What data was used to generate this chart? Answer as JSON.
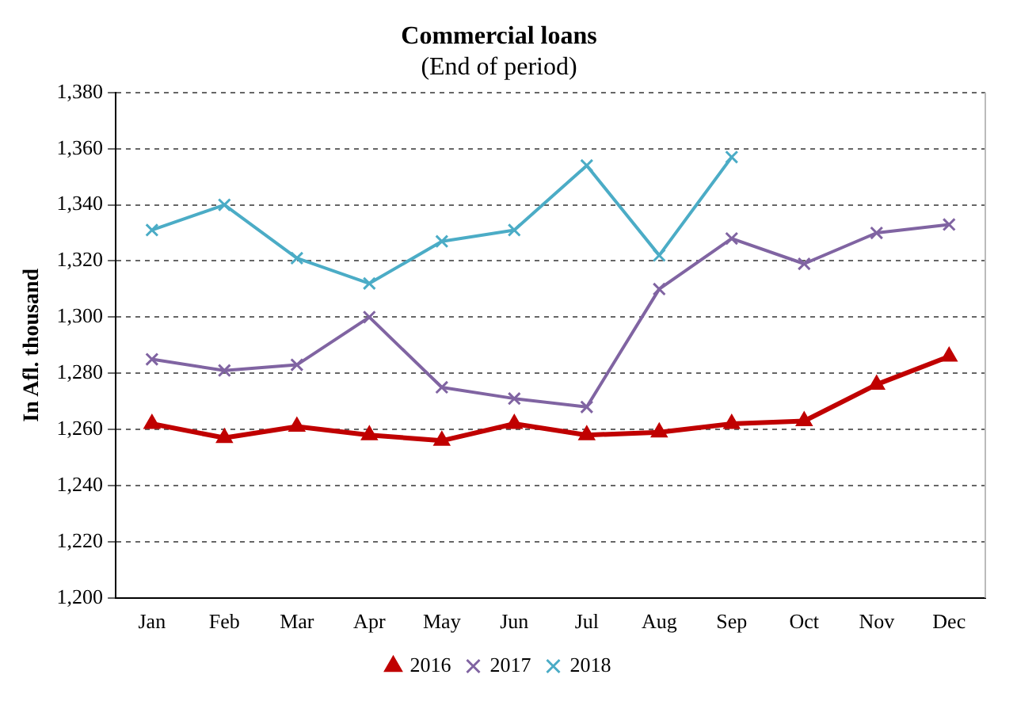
{
  "chart_data": {
    "type": "line",
    "title": "Commercial loans",
    "subtitle": "(End of period)",
    "ylabel": "In Afl. thousand",
    "categories": [
      "Jan",
      "Feb",
      "Mar",
      "Apr",
      "May",
      "Jun",
      "Jul",
      "Aug",
      "Sep",
      "Oct",
      "Nov",
      "Dec"
    ],
    "series": [
      {
        "name": "2016",
        "color": "#c00000",
        "marker": "triangle",
        "values": [
          1262,
          1257,
          1261,
          1258,
          1256,
          1262,
          1258,
          1259,
          1262,
          1263,
          1276,
          1286
        ]
      },
      {
        "name": "2017",
        "color": "#8064a2",
        "marker": "cross",
        "values": [
          1285,
          1281,
          1283,
          1300,
          1275,
          1271,
          1268,
          1310,
          1328,
          1319,
          1330,
          1333
        ]
      },
      {
        "name": "2018",
        "color": "#4bacc6",
        "marker": "cross",
        "values": [
          1331,
          1340,
          1321,
          1312,
          1327,
          1331,
          1354,
          1322,
          1357,
          null,
          null,
          null
        ]
      }
    ],
    "ylim": [
      1200,
      1380
    ],
    "yticks": [
      {
        "value": 1200,
        "label": "1,200"
      },
      {
        "value": 1220,
        "label": "1,220"
      },
      {
        "value": 1240,
        "label": "1,240"
      },
      {
        "value": 1260,
        "label": "1,260"
      },
      {
        "value": 1280,
        "label": "1,280"
      },
      {
        "value": 1300,
        "label": "1,300"
      },
      {
        "value": 1320,
        "label": "1,320"
      },
      {
        "value": 1340,
        "label": "1,340"
      },
      {
        "value": 1360,
        "label": "1,360"
      },
      {
        "value": 1380,
        "label": "1,380"
      }
    ],
    "grid": "y",
    "legend": "bottom",
    "line_style": "solid"
  }
}
